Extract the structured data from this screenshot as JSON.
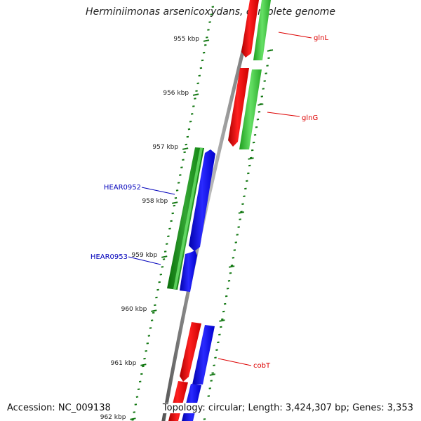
{
  "title": "Herminiimonas arsenicoxydans, complete genome",
  "footer": {
    "accession": "Accession: NC_009138",
    "summary": "Topology: circular; Length: 3,424,307 bp; Genes: 3,353"
  },
  "ticks": [
    {
      "label": "955 kbp",
      "kbp": 955
    },
    {
      "label": "956 kbp",
      "kbp": 956
    },
    {
      "label": "957 kbp",
      "kbp": 957
    },
    {
      "label": "958 kbp",
      "kbp": 958
    },
    {
      "label": "959 kbp",
      "kbp": 959
    },
    {
      "label": "960 kbp",
      "kbp": 960
    },
    {
      "label": "961 kbp",
      "kbp": 961
    },
    {
      "label": "962 kbp",
      "kbp": 962
    }
  ],
  "gene_labels": [
    {
      "name": "glnL",
      "color": "#dd0000"
    },
    {
      "name": "glnG",
      "color": "#dd0000"
    },
    {
      "name": "HEAR0952",
      "color": "#0000bb"
    },
    {
      "name": "HEAR0953",
      "color": "#0000bb"
    },
    {
      "name": "cobT",
      "color": "#dd0000"
    }
  ],
  "colors": {
    "red_feature": "#ff0000",
    "green_feature": "#33cc33",
    "dark_green_feature": "#119911",
    "blue_feature": "#0000ff",
    "backbone": "#808080",
    "tick": "#117711"
  }
}
